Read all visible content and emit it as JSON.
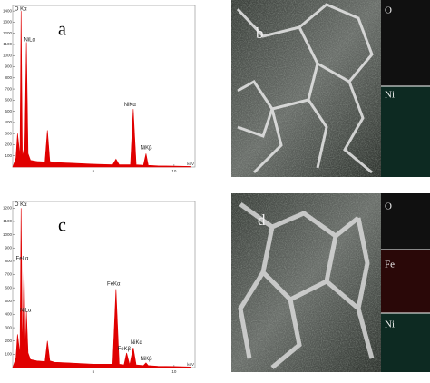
{
  "chart_data": [
    {
      "type": "area",
      "panel_label": "a",
      "color": "#e00000",
      "x_label": "keV",
      "x": [
        0,
        0.2,
        0.3,
        0.45,
        0.52,
        0.6,
        0.75,
        0.85,
        0.95,
        1.1,
        1.5,
        2.0,
        2.15,
        2.3,
        2.6,
        3.5,
        5,
        6.2,
        6.4,
        6.6,
        7.3,
        7.47,
        7.65,
        8.1,
        8.26,
        8.4,
        9,
        10,
        11
      ],
      "values": [
        0,
        80,
        300,
        100,
        1400,
        90,
        200,
        1120,
        120,
        60,
        50,
        45,
        330,
        50,
        40,
        35,
        25,
        20,
        70,
        20,
        20,
        520,
        20,
        15,
        120,
        15,
        10,
        8,
        5
      ],
      "xlim": [
        0,
        11.3
      ],
      "xticks": [
        5,
        10
      ],
      "ylim": [
        0,
        1450
      ],
      "yticks": [
        100,
        200,
        300,
        400,
        500,
        600,
        700,
        800,
        900,
        1000,
        1100,
        1200,
        1300,
        1400
      ],
      "annotations": [
        {
          "text": "O Kα",
          "x": 0.1,
          "y": 1420
        },
        {
          "text": "NiLα",
          "x": 0.7,
          "y": 1140
        },
        {
          "text": "NiKα",
          "x": 6.9,
          "y": 560
        },
        {
          "text": "NiKβ",
          "x": 7.9,
          "y": 170
        }
      ]
    },
    {
      "type": "area",
      "panel_label": "c",
      "color": "#e00000",
      "x_label": "keV",
      "x": [
        0,
        0.2,
        0.3,
        0.45,
        0.52,
        0.6,
        0.7,
        0.78,
        0.85,
        0.95,
        1.1,
        1.5,
        2.0,
        2.15,
        2.3,
        2.6,
        3.5,
        5,
        6.2,
        6.4,
        6.6,
        6.9,
        7.06,
        7.25,
        7.47,
        7.65,
        8.1,
        8.26,
        8.4,
        9,
        10,
        11
      ],
      "values": [
        0,
        70,
        250,
        100,
        1200,
        110,
        780,
        120,
        420,
        110,
        60,
        50,
        45,
        200,
        50,
        40,
        35,
        25,
        25,
        590,
        25,
        20,
        110,
        20,
        150,
        20,
        15,
        35,
        15,
        10,
        8,
        5
      ],
      "xlim": [
        0,
        11.3
      ],
      "xticks": [
        5,
        10
      ],
      "ylim": [
        0,
        1250
      ],
      "yticks": [
        100,
        200,
        300,
        400,
        500,
        600,
        700,
        800,
        900,
        1000,
        1100,
        1200
      ],
      "annotations": [
        {
          "text": "O Kα",
          "x": 0.1,
          "y": 1225
        },
        {
          "text": "FeLα",
          "x": 0.2,
          "y": 820
        },
        {
          "text": "NiLα",
          "x": 0.45,
          "y": 430
        },
        {
          "text": "FeKα",
          "x": 5.85,
          "y": 630
        },
        {
          "text": "NiKα",
          "x": 7.3,
          "y": 190
        },
        {
          "text": "FeKβ",
          "x": 6.5,
          "y": 140
        },
        {
          "text": "NiKβ",
          "x": 7.9,
          "y": 65
        }
      ]
    }
  ],
  "image_panels": [
    {
      "label": "b",
      "maps": [
        "O",
        "Ni"
      ]
    },
    {
      "label": "d",
      "maps": [
        "O",
        "Fe",
        "Ni"
      ]
    }
  ]
}
